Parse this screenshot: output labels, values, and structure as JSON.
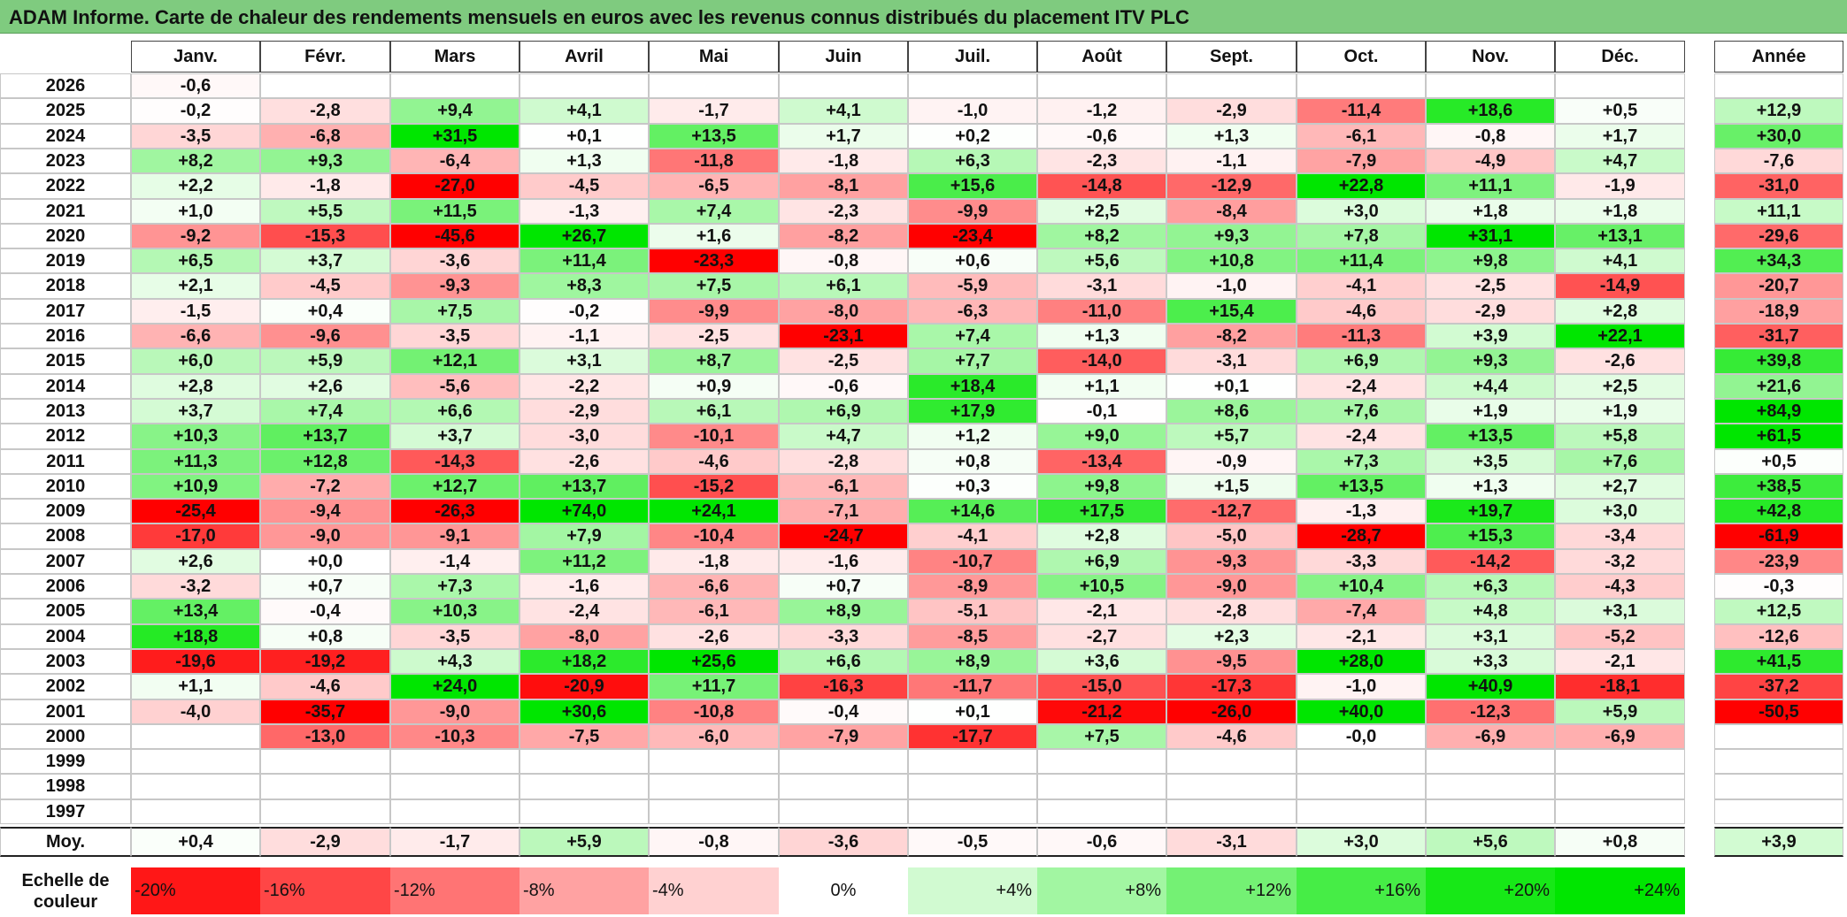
{
  "title": "ADAM Informe. Carte de chaleur des rendements mensuels en euros avec les revenus connus distribués du placement ITV PLC",
  "chart_data": {
    "type": "heatmap",
    "months": [
      "Janv.",
      "Févr.",
      "Mars",
      "Avril",
      "Mai",
      "Juin",
      "Juil.",
      "Août",
      "Sept.",
      "Oct.",
      "Nov.",
      "Déc."
    ],
    "annual_header": "Année",
    "years": [
      "2026",
      "2025",
      "2024",
      "2023",
      "2022",
      "2021",
      "2020",
      "2019",
      "2018",
      "2017",
      "2016",
      "2015",
      "2014",
      "2013",
      "2012",
      "2011",
      "2010",
      "2009",
      "2008",
      "2007",
      "2006",
      "2005",
      "2004",
      "2003",
      "2002",
      "2001",
      "2000",
      "1999",
      "1998",
      "1997"
    ],
    "values": [
      [
        "-0,6",
        "",
        "",
        "",
        "",
        "",
        "",
        "",
        "",
        "",
        "",
        ""
      ],
      [
        "-0,2",
        "-2,8",
        "+9,4",
        "+4,1",
        "-1,7",
        "+4,1",
        "-1,0",
        "-1,2",
        "-2,9",
        "-11,4",
        "+18,6",
        "+0,5"
      ],
      [
        "-3,5",
        "-6,8",
        "+31,5",
        "+0,1",
        "+13,5",
        "+1,7",
        "+0,2",
        "-0,6",
        "+1,3",
        "-6,1",
        "-0,8",
        "+1,7"
      ],
      [
        "+8,2",
        "+9,3",
        "-6,4",
        "+1,3",
        "-11,8",
        "-1,8",
        "+6,3",
        "-2,3",
        "-1,1",
        "-7,9",
        "-4,9",
        "+4,7"
      ],
      [
        "+2,2",
        "-1,8",
        "-27,0",
        "-4,5",
        "-6,5",
        "-8,1",
        "+15,6",
        "-14,8",
        "-12,9",
        "+22,8",
        "+11,1",
        "-1,9"
      ],
      [
        "+1,0",
        "+5,5",
        "+11,5",
        "-1,3",
        "+7,4",
        "-2,3",
        "-9,9",
        "+2,5",
        "-8,4",
        "+3,0",
        "+1,8",
        "+1,8"
      ],
      [
        "-9,2",
        "-15,3",
        "-45,6",
        "+26,7",
        "+1,6",
        "-8,2",
        "-23,4",
        "+8,2",
        "+9,3",
        "+7,8",
        "+31,1",
        "+13,1"
      ],
      [
        "+6,5",
        "+3,7",
        "-3,6",
        "+11,4",
        "-23,3",
        "-0,8",
        "+0,6",
        "+5,6",
        "+10,8",
        "+11,4",
        "+9,8",
        "+4,1"
      ],
      [
        "+2,1",
        "-4,5",
        "-9,3",
        "+8,3",
        "+7,5",
        "+6,1",
        "-5,9",
        "-3,1",
        "-1,0",
        "-4,1",
        "-2,5",
        "-14,9"
      ],
      [
        "-1,5",
        "+0,4",
        "+7,5",
        "-0,2",
        "-9,9",
        "-8,0",
        "-6,3",
        "-11,0",
        "+15,4",
        "-4,6",
        "-2,9",
        "+2,8"
      ],
      [
        "-6,6",
        "-9,6",
        "-3,5",
        "-1,1",
        "-2,5",
        "-23,1",
        "+7,4",
        "+1,3",
        "-8,2",
        "-11,3",
        "+3,9",
        "+22,1"
      ],
      [
        "+6,0",
        "+5,9",
        "+12,1",
        "+3,1",
        "+8,7",
        "-2,5",
        "+7,7",
        "-14,0",
        "-3,1",
        "+6,9",
        "+9,3",
        "-2,6"
      ],
      [
        "+2,8",
        "+2,6",
        "-5,6",
        "-2,2",
        "+0,9",
        "-0,6",
        "+18,4",
        "+1,1",
        "+0,1",
        "-2,4",
        "+4,4",
        "+2,5"
      ],
      [
        "+3,7",
        "+7,4",
        "+6,6",
        "-2,9",
        "+6,1",
        "+6,9",
        "+17,9",
        "-0,1",
        "+8,6",
        "+7,6",
        "+1,9",
        "+1,9"
      ],
      [
        "+10,3",
        "+13,7",
        "+3,7",
        "-3,0",
        "-10,1",
        "+4,7",
        "+1,2",
        "+9,0",
        "+5,7",
        "-2,4",
        "+13,5",
        "+5,8"
      ],
      [
        "+11,3",
        "+12,8",
        "-14,3",
        "-2,6",
        "-4,6",
        "-2,8",
        "+0,8",
        "-13,4",
        "-0,9",
        "+7,3",
        "+3,5",
        "+7,6"
      ],
      [
        "+10,9",
        "-7,2",
        "+12,7",
        "+13,7",
        "-15,2",
        "-6,1",
        "+0,3",
        "+9,8",
        "+1,5",
        "+13,5",
        "+1,3",
        "+2,7"
      ],
      [
        "-25,4",
        "-9,4",
        "-26,3",
        "+74,0",
        "+24,1",
        "-7,1",
        "+14,6",
        "+17,5",
        "-12,7",
        "-1,3",
        "+19,7",
        "+3,0"
      ],
      [
        "-17,0",
        "-9,0",
        "-9,1",
        "+7,9",
        "-10,4",
        "-24,7",
        "-4,1",
        "+2,8",
        "-5,0",
        "-28,7",
        "+15,3",
        "-3,4"
      ],
      [
        "+2,6",
        "+0,0",
        "-1,4",
        "+11,2",
        "-1,8",
        "-1,6",
        "-10,7",
        "+6,9",
        "-9,3",
        "-3,3",
        "-14,2",
        "-3,2"
      ],
      [
        "-3,2",
        "+0,7",
        "+7,3",
        "-1,6",
        "-6,6",
        "+0,7",
        "-8,9",
        "+10,5",
        "-9,0",
        "+10,4",
        "+6,3",
        "-4,3"
      ],
      [
        "+13,4",
        "-0,4",
        "+10,3",
        "-2,4",
        "-6,1",
        "+8,9",
        "-5,1",
        "-2,1",
        "-2,8",
        "-7,4",
        "+4,8",
        "+3,1"
      ],
      [
        "+18,8",
        "+0,8",
        "-3,5",
        "-8,0",
        "-2,6",
        "-3,3",
        "-8,5",
        "-2,7",
        "+2,3",
        "-2,1",
        "+3,1",
        "-5,2"
      ],
      [
        "-19,6",
        "-19,2",
        "+4,3",
        "+18,2",
        "+25,6",
        "+6,6",
        "+8,9",
        "+3,6",
        "-9,5",
        "+28,0",
        "+3,3",
        "-2,1"
      ],
      [
        "+1,1",
        "-4,6",
        "+24,0",
        "-20,9",
        "+11,7",
        "-16,3",
        "-11,7",
        "-15,0",
        "-17,3",
        "-1,0",
        "+40,9",
        "-18,1"
      ],
      [
        "-4,0",
        "-35,7",
        "-9,0",
        "+30,6",
        "-10,8",
        "-0,4",
        "+0,1",
        "-21,2",
        "-26,0",
        "+40,0",
        "-12,3",
        "+5,9"
      ],
      [
        "",
        "-13,0",
        "-10,3",
        "-7,5",
        "-6,0",
        "-7,9",
        "-17,7",
        "+7,5",
        "-4,6",
        "-0,0",
        "-6,9",
        "-6,9"
      ],
      [
        "",
        "",
        "",
        "",
        "",
        "",
        "",
        "",
        "",
        "",
        "",
        ""
      ],
      [
        "",
        "",
        "",
        "",
        "",
        "",
        "",
        "",
        "",
        "",
        "",
        ""
      ],
      [
        "",
        "",
        "",
        "",
        "",
        "",
        "",
        "",
        "",
        "",
        "",
        ""
      ]
    ],
    "annual": [
      "",
      "+12,9",
      "+30,0",
      "-7,6",
      "-31,0",
      "+11,1",
      "-29,6",
      "+34,3",
      "-20,7",
      "-18,9",
      "-31,7",
      "+39,8",
      "+21,6",
      "+84,9",
      "+61,5",
      "+0,5",
      "+38,5",
      "+42,8",
      "-61,9",
      "-23,9",
      "-0,3",
      "+12,5",
      "-12,6",
      "+41,5",
      "-37,2",
      "-50,5",
      "",
      "",
      "",
      ""
    ],
    "average_label": "Moy.",
    "averages": [
      "+0,4",
      "-2,9",
      "-1,7",
      "+5,9",
      "-0,8",
      "-3,6",
      "-0,5",
      "-0,6",
      "-3,1",
      "+3,0",
      "+5,6",
      "+0,8"
    ],
    "annual_average": "+3,9",
    "scale_label": "Echelle de couleur",
    "scale": [
      "-20%",
      "-16%",
      "-12%",
      "-8%",
      "-4%",
      "0%",
      "+4%",
      "+8%",
      "+12%",
      "+16%",
      "+20%",
      "+24%"
    ],
    "scale_colors": {
      "negative_max": "#ff0000",
      "neutral": "#ffffff",
      "positive_max": "#00e600"
    }
  }
}
